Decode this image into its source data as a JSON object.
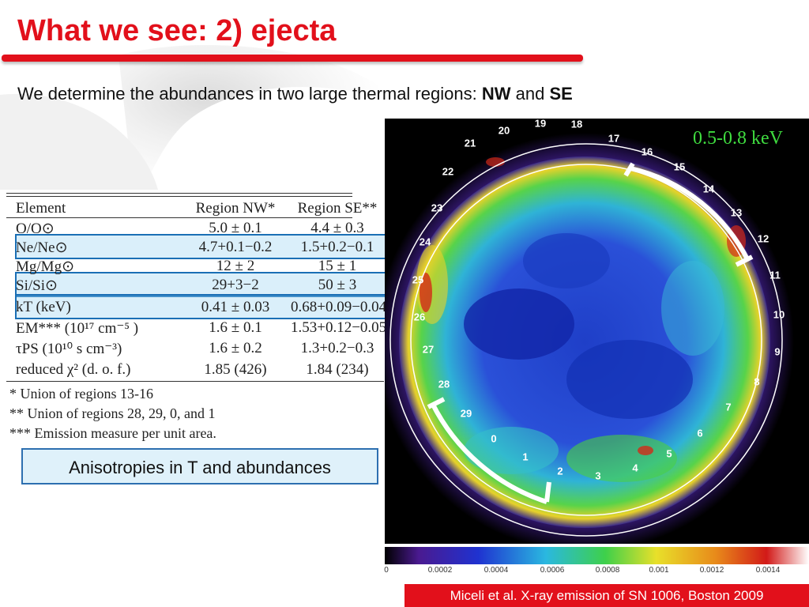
{
  "slide": {
    "title": "What we see: 2) ejecta",
    "subtitle_text": "We determine the abundances in two large thermal regions:",
    "subtitle_nw": "NW",
    "subtitle_and": "and",
    "subtitle_se": "SE",
    "accent_color": "#e2101b"
  },
  "table": {
    "headers": [
      "Element",
      "Region NW*",
      "Region SE**"
    ],
    "rows": [
      {
        "element": "O/O⊙",
        "nw": "5.0 ± 0.1",
        "se": "4.4 ± 0.3"
      },
      {
        "element": "Ne/Ne⊙",
        "nw": "4.7+0.1−0.2",
        "se": "1.5+0.2−0.1"
      },
      {
        "element": "Mg/Mg⊙",
        "nw": "12 ± 2",
        "se": "15 ± 1"
      },
      {
        "element": "Si/Si⊙",
        "nw": "29+3−2",
        "se": "50 ± 3"
      },
      {
        "element": "kT (keV)",
        "nw": "0.41 ± 0.03",
        "se": "0.68+0.09−0.04"
      },
      {
        "element": "EM*** (10¹⁷ cm⁻⁵ )",
        "nw": "1.6 ± 0.1",
        "se": "1.53+0.12−0.05"
      },
      {
        "element": "τPS (10¹⁰ s cm⁻³)",
        "nw": "1.6 ± 0.2",
        "se": "1.3+0.2−0.3"
      },
      {
        "element": "reduced χ² (d. o. f.)",
        "nw": "1.85 (426)",
        "se": "1.84 (234)"
      }
    ],
    "footnotes": [
      "* Union of regions 13-16",
      "** Union of regions 28, 29, 0, and 1",
      "*** Emission measure per unit area."
    ]
  },
  "callout": "Anisotropies in T and abundances",
  "map": {
    "energy_band": "0.5-0.8 keV",
    "region_labels": [
      "0",
      "1",
      "2",
      "3",
      "4",
      "5",
      "6",
      "7",
      "8",
      "9",
      "10",
      "11",
      "12",
      "13",
      "14",
      "15",
      "16",
      "17",
      "18",
      "19",
      "20",
      "21",
      "22",
      "23",
      "24",
      "25",
      "26",
      "27",
      "28",
      "29"
    ],
    "colorbar_ticks": [
      "0",
      "0.0002",
      "0.0004",
      "0.0006",
      "0.0008",
      "0.001",
      "0.0012",
      "0.0014"
    ]
  },
  "credit": "Miceli et al. X-ray emission of SN 1006, Boston 2009"
}
